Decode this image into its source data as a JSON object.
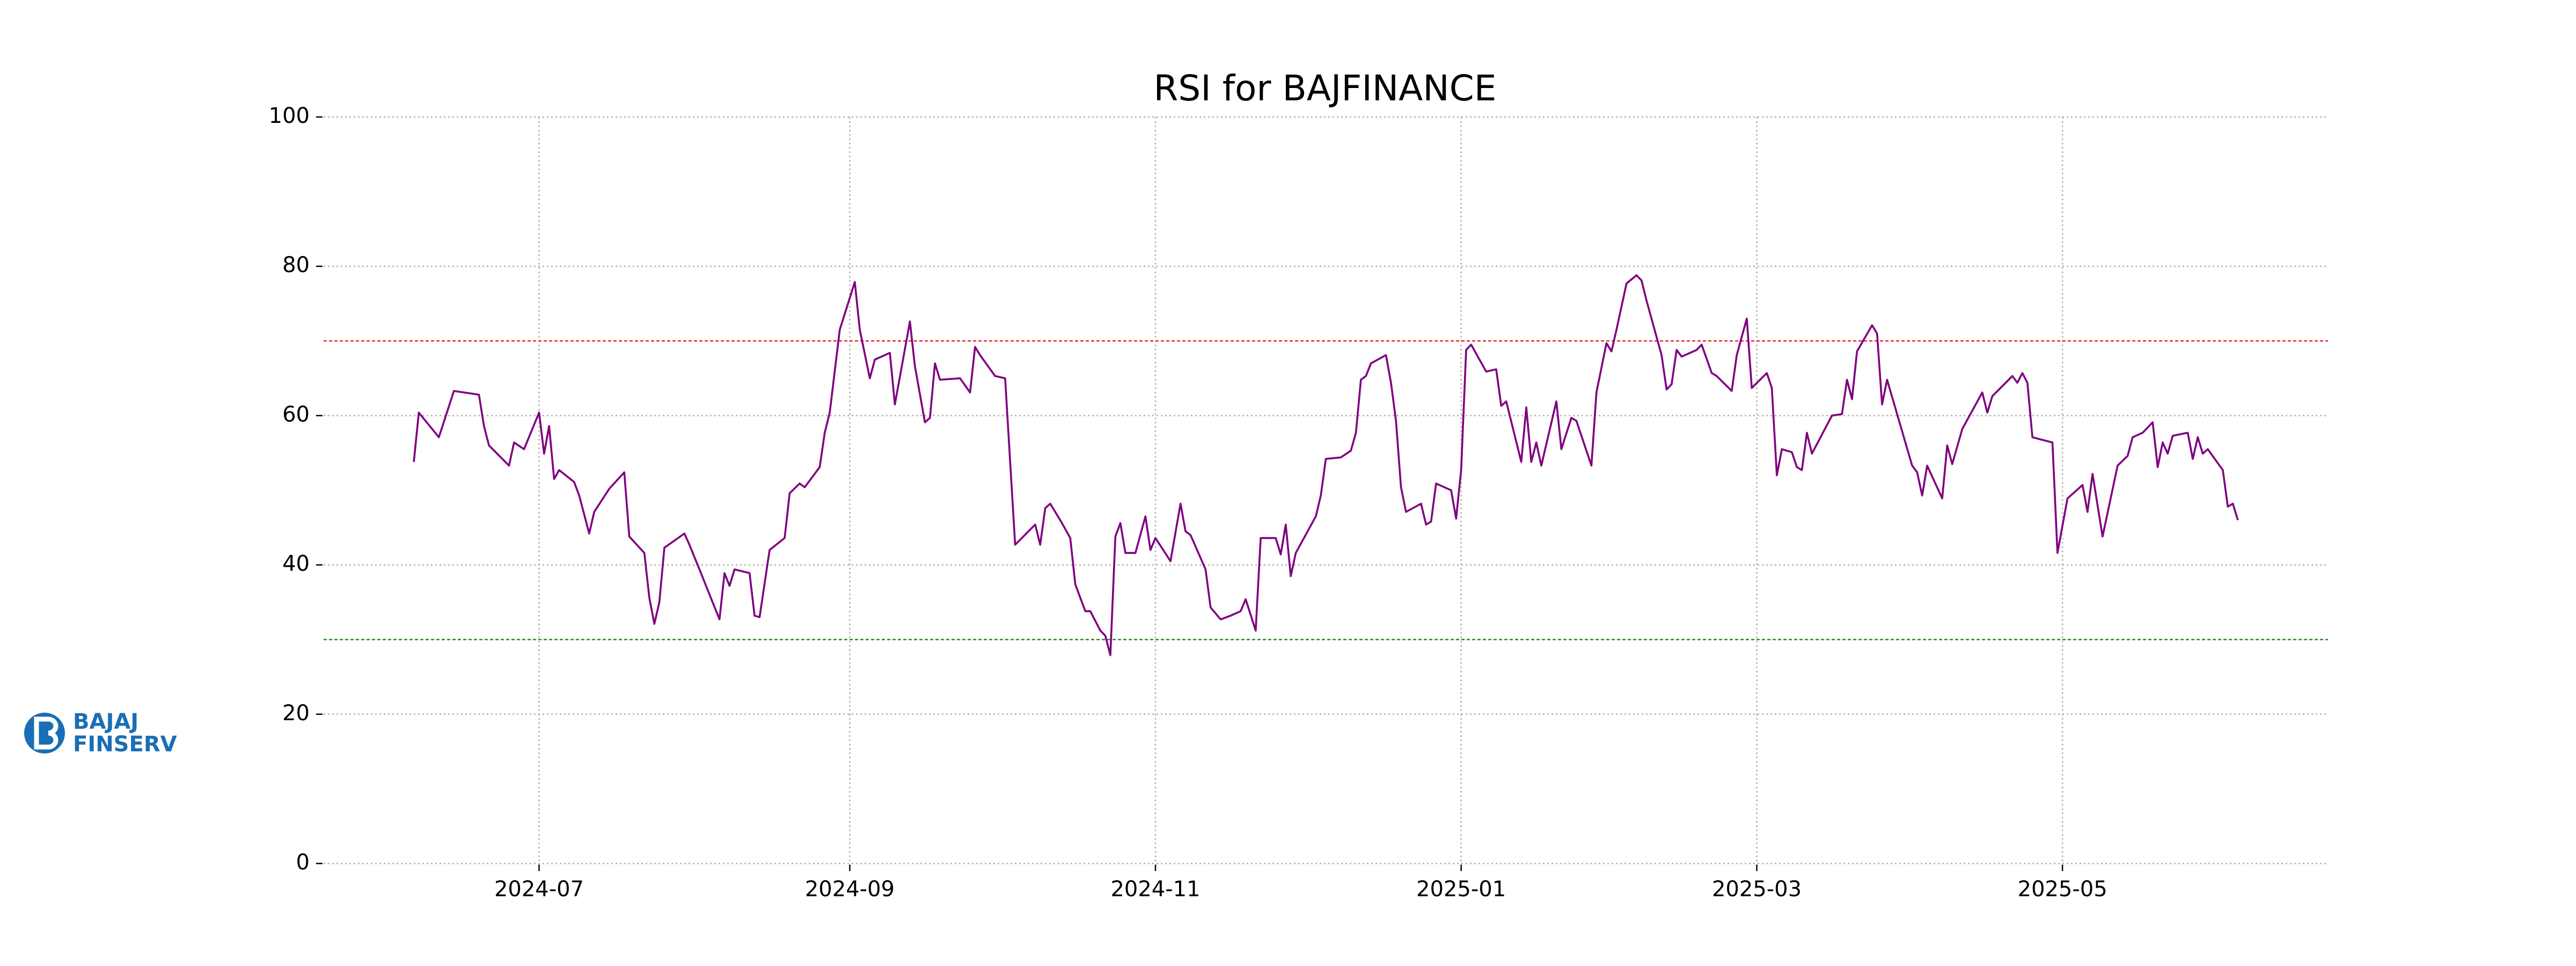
{
  "chart_data": {
    "type": "line",
    "title": "RSI for BAJFINANCE",
    "x": [
      "2024-06-06",
      "2024-06-07",
      "2024-06-11",
      "2024-06-14",
      "2024-06-19",
      "2024-06-20",
      "2024-06-21",
      "2024-06-25",
      "2024-06-26",
      "2024-06-28",
      "2024-07-01",
      "2024-07-02",
      "2024-07-03",
      "2024-07-04",
      "2024-07-05",
      "2024-07-08",
      "2024-07-09",
      "2024-07-11",
      "2024-07-12",
      "2024-07-15",
      "2024-07-18",
      "2024-07-19",
      "2024-07-22",
      "2024-07-23",
      "2024-07-24",
      "2024-07-25",
      "2024-07-26",
      "2024-07-30",
      "2024-07-31",
      "2024-08-02",
      "2024-08-06",
      "2024-08-07",
      "2024-08-08",
      "2024-08-09",
      "2024-08-12",
      "2024-08-13",
      "2024-08-14",
      "2024-08-16",
      "2024-08-19",
      "2024-08-20",
      "2024-08-22",
      "2024-08-23",
      "2024-08-26",
      "2024-08-27",
      "2024-08-28",
      "2024-08-30",
      "2024-09-02",
      "2024-09-03",
      "2024-09-05",
      "2024-09-06",
      "2024-09-09",
      "2024-09-10",
      "2024-09-13",
      "2024-09-14",
      "2024-09-16",
      "2024-09-17",
      "2024-09-18",
      "2024-09-19",
      "2024-09-23",
      "2024-09-25",
      "2024-09-26",
      "2024-09-27",
      "2024-09-30",
      "2024-10-02",
      "2024-10-04",
      "2024-10-08",
      "2024-10-09",
      "2024-10-10",
      "2024-10-11",
      "2024-10-13",
      "2024-10-15",
      "2024-10-16",
      "2024-10-18",
      "2024-10-19",
      "2024-10-21",
      "2024-10-22",
      "2024-10-23",
      "2024-10-24",
      "2024-10-25",
      "2024-10-26",
      "2024-10-28",
      "2024-10-30",
      "2024-10-31",
      "2024-11-01",
      "2024-11-04",
      "2024-11-06",
      "2024-11-07",
      "2024-11-08",
      "2024-11-11",
      "2024-11-12",
      "2024-11-14",
      "2024-11-16",
      "2024-11-18",
      "2024-11-19",
      "2024-11-21",
      "2024-11-22",
      "2024-11-25",
      "2024-11-26",
      "2024-11-27",
      "2024-11-28",
      "2024-11-29",
      "2024-12-03",
      "2024-12-04",
      "2024-12-05",
      "2024-12-08",
      "2024-12-10",
      "2024-12-11",
      "2024-12-12",
      "2024-12-13",
      "2024-12-14",
      "2024-12-17",
      "2024-12-18",
      "2024-12-19",
      "2024-12-20",
      "2024-12-21",
      "2024-12-24",
      "2024-12-25",
      "2024-12-26",
      "2024-12-27",
      "2024-12-30",
      "2024-12-31",
      "2025-01-01",
      "2025-01-02",
      "2025-01-03",
      "2025-01-06",
      "2025-01-08",
      "2025-01-09",
      "2025-01-10",
      "2025-01-13",
      "2025-01-14",
      "2025-01-15",
      "2025-01-16",
      "2025-01-17",
      "2025-01-20",
      "2025-01-21",
      "2025-01-23",
      "2025-01-24",
      "2025-01-27",
      "2025-01-28",
      "2025-01-30",
      "2025-01-31",
      "2025-02-01",
      "2025-02-03",
      "2025-02-05",
      "2025-02-06",
      "2025-02-07",
      "2025-02-10",
      "2025-02-11",
      "2025-02-12",
      "2025-02-13",
      "2025-02-14",
      "2025-02-17",
      "2025-02-18",
      "2025-02-20",
      "2025-02-21",
      "2025-02-24",
      "2025-02-25",
      "2025-02-27",
      "2025-02-28",
      "2025-03-03",
      "2025-03-04",
      "2025-03-05",
      "2025-03-06",
      "2025-03-08",
      "2025-03-09",
      "2025-03-10",
      "2025-03-11",
      "2025-03-12",
      "2025-03-16",
      "2025-03-18",
      "2025-03-19",
      "2025-03-20",
      "2025-03-21",
      "2025-03-24",
      "2025-03-25",
      "2025-03-26",
      "2025-03-27",
      "2025-04-01",
      "2025-04-02",
      "2025-04-03",
      "2025-04-04",
      "2025-04-07",
      "2025-04-08",
      "2025-04-09",
      "2025-04-11",
      "2025-04-15",
      "2025-04-16",
      "2025-04-17",
      "2025-04-21",
      "2025-04-22",
      "2025-04-23",
      "2025-04-24",
      "2025-04-25",
      "2025-04-29",
      "2025-04-30",
      "2025-05-02",
      "2025-05-05",
      "2025-05-06",
      "2025-05-07",
      "2025-05-09",
      "2025-05-12",
      "2025-05-14",
      "2025-05-15",
      "2025-05-17",
      "2025-05-19",
      "2025-05-20",
      "2025-05-21",
      "2025-05-22",
      "2025-05-23",
      "2025-05-26",
      "2025-05-27",
      "2025-05-28",
      "2025-05-29",
      "2025-05-30",
      "2025-06-02",
      "2025-06-03",
      "2025-06-04",
      "2025-06-05"
    ],
    "values": [
      53.8,
      60.4,
      57.1,
      63.3,
      62.8,
      58.6,
      56.0,
      53.3,
      56.4,
      55.5,
      60.4,
      54.9,
      58.6,
      51.5,
      52.7,
      51.1,
      49.3,
      44.2,
      47.1,
      50.2,
      52.4,
      43.8,
      41.6,
      35.6,
      32.1,
      35.0,
      42.3,
      44.2,
      42.7,
      39.4,
      32.7,
      38.9,
      37.2,
      39.4,
      38.9,
      33.2,
      33.0,
      42.0,
      43.6,
      49.6,
      50.9,
      50.4,
      53.1,
      57.7,
      60.4,
      71.5,
      77.9,
      71.5,
      65.0,
      67.5,
      68.4,
      61.5,
      72.6,
      66.6,
      59.1,
      59.7,
      67.0,
      64.8,
      65.0,
      63.1,
      69.2,
      68.1,
      65.3,
      65.0,
      42.7,
      45.4,
      42.7,
      47.6,
      48.2,
      46.0,
      43.6,
      37.4,
      33.8,
      33.8,
      31.2,
      30.5,
      27.9,
      43.8,
      45.6,
      41.6,
      41.6,
      46.5,
      42.0,
      43.6,
      40.5,
      48.2,
      44.5,
      44.0,
      39.4,
      34.3,
      32.7,
      33.2,
      33.8,
      35.4,
      31.2,
      43.6,
      43.6,
      41.4,
      45.4,
      38.5,
      41.6,
      46.5,
      49.3,
      54.2,
      54.4,
      55.3,
      57.7,
      64.8,
      65.3,
      67.0,
      68.1,
      64.4,
      59.3,
      50.4,
      47.1,
      48.2,
      45.4,
      45.8,
      50.9,
      50.0,
      46.2,
      52.7,
      68.8,
      69.5,
      65.9,
      66.2,
      61.3,
      61.9,
      53.8,
      61.1,
      53.8,
      56.4,
      53.3,
      61.9,
      55.5,
      59.7,
      59.3,
      53.3,
      63.1,
      69.7,
      68.6,
      71.5,
      77.7,
      78.8,
      78.1,
      75.4,
      68.1,
      63.5,
      64.2,
      68.8,
      67.9,
      68.8,
      69.5,
      65.7,
      65.3,
      63.3,
      68.1,
      73.0,
      63.7,
      65.7,
      63.7,
      52.0,
      55.5,
      55.1,
      53.1,
      52.7,
      57.7,
      54.9,
      60.0,
      60.2,
      64.8,
      62.2,
      68.6,
      72.1,
      71.0,
      61.5,
      64.8,
      53.3,
      52.4,
      49.3,
      53.3,
      48.9,
      56.0,
      53.5,
      58.2,
      63.1,
      60.4,
      62.6,
      65.3,
      64.4,
      65.7,
      64.4,
      57.1,
      56.4,
      41.6,
      48.9,
      50.7,
      47.1,
      52.2,
      43.8,
      53.3,
      54.6,
      57.1,
      57.7,
      59.1,
      53.1,
      56.4,
      54.9,
      57.3,
      57.7,
      54.2,
      57.1,
      54.9,
      55.5,
      52.7,
      47.8,
      48.2,
      46.0
    ],
    "color": "#800080",
    "xlim": [
      "2024-05-19",
      "2025-06-23"
    ],
    "xticks": [
      {
        "value": "2024-07-01",
        "label": "2024-07"
      },
      {
        "value": "2024-09-01",
        "label": "2024-09"
      },
      {
        "value": "2024-11-01",
        "label": "2024-11"
      },
      {
        "value": "2025-01-01",
        "label": "2025-01"
      },
      {
        "value": "2025-03-01",
        "label": "2025-03"
      },
      {
        "value": "2025-05-01",
        "label": "2025-05"
      }
    ],
    "ylim": [
      0,
      100
    ],
    "yticks": [
      0,
      20,
      40,
      60,
      80,
      100
    ],
    "grid": true,
    "hlines": [
      {
        "value": 70,
        "color": "#e03030"
      },
      {
        "value": 30,
        "color": "#2e8b2e"
      }
    ]
  },
  "logo_text": [
    "BAJAJ",
    "FINSERV"
  ]
}
